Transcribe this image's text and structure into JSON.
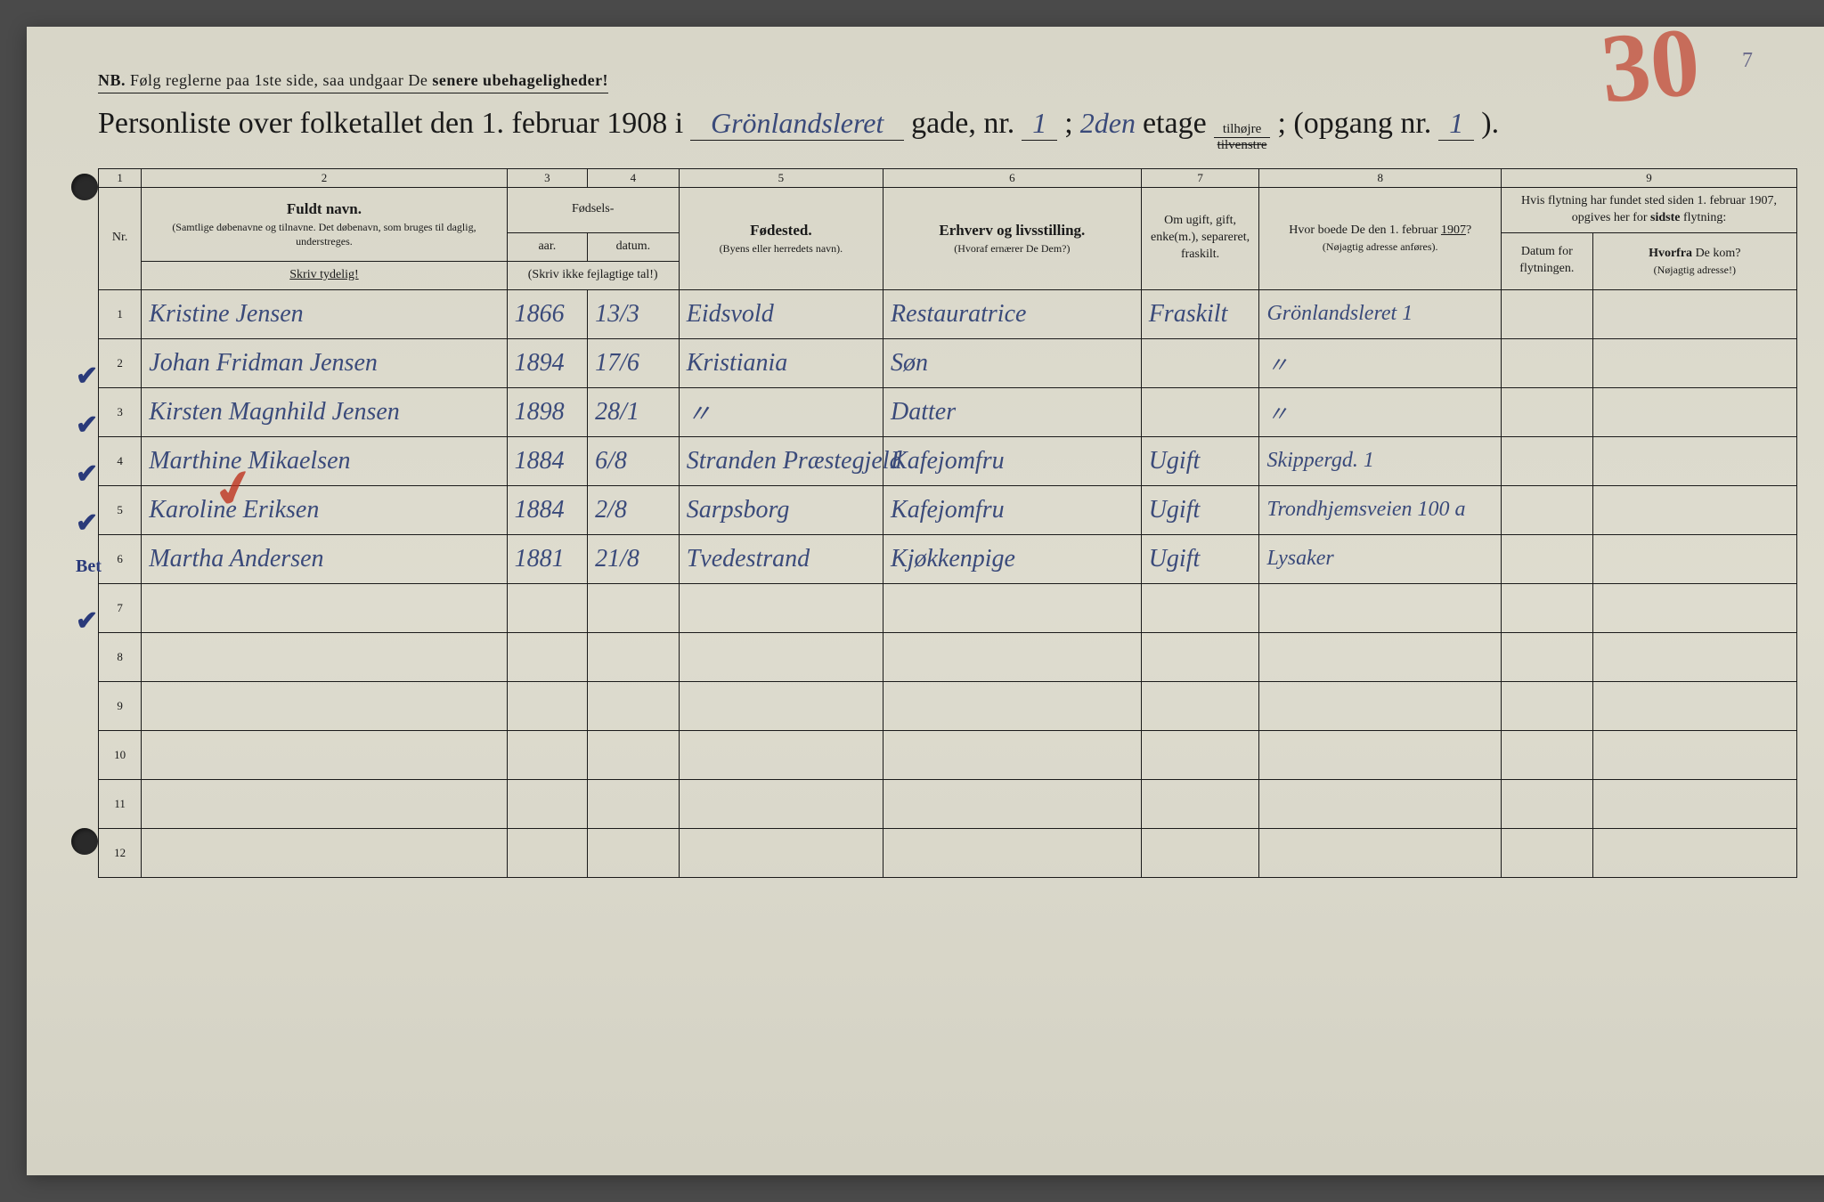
{
  "meta": {
    "page_corner_number": "7",
    "red_annotation": "30"
  },
  "nb_line": {
    "prefix": "NB.",
    "text": "Følg reglerne paa 1ste side, saa undgaar De",
    "bold_tail": "senere ubehageligheder!"
  },
  "title": {
    "lead": "Personliste over folketallet den 1. februar 1908 i",
    "street_hw": "Grönlandsleret",
    "after_street": "gade, nr.",
    "house_nr_hw": "1",
    "semicolon": ";",
    "floor_hw": "2den",
    "etage": "etage",
    "fraction_top": "tilhøjre",
    "fraction_bottom": "tilvenstre",
    "opgang_label": "; (opgang nr.",
    "opgang_hw": "1",
    "close": ")."
  },
  "column_numbers": [
    "1",
    "2",
    "3",
    "4",
    "5",
    "6",
    "7",
    "8",
    "9"
  ],
  "headers": {
    "nr": "Nr.",
    "name_main": "Fuldt navn.",
    "name_sub": "(Samtlige døbenavne og tilnavne. Det døbenavn, som bruges til daglig, understreges.",
    "birth_group": "Fødsels-",
    "year": "aar.",
    "date": "datum.",
    "birth_note": "(Skriv ikke fejlagtige tal!)",
    "birthplace": "Fødested.",
    "birthplace_sub": "(Byens eller herredets navn).",
    "occupation": "Erhverv og livsstilling.",
    "occupation_sub": "(Hvoraf ernærer De Dem?)",
    "marital": "Om ugift, gift, enke(m.), separeret, fraskilt.",
    "prev_addr": "Hvor boede De den 1. februar 1907?",
    "prev_addr_sub": "(Nøjagtig adresse anføres).",
    "move_group": "Hvis flytning har fundet sted siden 1. februar 1907, opgives her for sidste flytning:",
    "move_date": "Datum for flytningen.",
    "move_from": "Hvorfra De kom?",
    "move_from_sub": "(Nøjagtig adresse!)",
    "write_clearly": "Skriv tydelig!"
  },
  "rows": [
    {
      "nr": "1",
      "check": "✔",
      "name": "Kristine Jensen",
      "year": "1866",
      "date": "13/3",
      "place": "Eidsvold",
      "occ": "Restauratrice",
      "marital": "Fraskilt",
      "prev": "Grönlandsleret 1"
    },
    {
      "nr": "2",
      "check": "✔",
      "name": "Johan Fridman Jensen",
      "year": "1894",
      "date": "17/6",
      "place": "Kristiania",
      "occ": "Søn",
      "marital": "",
      "prev": "〃"
    },
    {
      "nr": "3",
      "check": "✔",
      "name": "Kirsten Magnhild Jensen",
      "year": "1898",
      "date": "28/1",
      "place": "〃",
      "occ": "Datter",
      "marital": "",
      "prev": "〃"
    },
    {
      "nr": "4",
      "check": "✔",
      "name": "Marthine Mikaelsen",
      "year": "1884",
      "date": "6/8",
      "place": "Stranden Præstegjeld",
      "occ": "Kafejomfru",
      "marital": "Ugift",
      "prev": "Skippergd. 1"
    },
    {
      "nr": "5",
      "check": "Bet",
      "red_tick": true,
      "name": "Karoline Eriksen",
      "year": "1884",
      "date": "2/8",
      "place": "Sarpsborg",
      "occ": "Kafejomfru",
      "marital": "Ugift",
      "prev": "Trondhjemsveien 100 a"
    },
    {
      "nr": "6",
      "check": "✔",
      "name": "Martha Andersen",
      "year": "1881",
      "date": "21/8",
      "place": "Tvedestrand",
      "occ": "Kjøkkenpige",
      "marital": "Ugift",
      "prev": "Lysaker"
    }
  ],
  "empty_rows": [
    "7",
    "8",
    "9",
    "10",
    "11",
    "12"
  ],
  "colors": {
    "paper": "#d8d6c8",
    "ink_print": "#1a1a1a",
    "ink_handwriting": "#3a4a7a",
    "ink_red": "#be321e"
  }
}
